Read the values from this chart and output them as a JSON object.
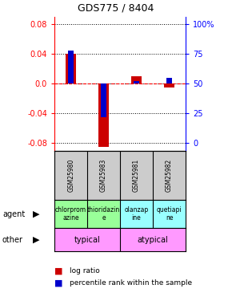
{
  "title": "GDS775 / 8404",
  "samples": [
    "GSM25980",
    "GSM25983",
    "GSM25981",
    "GSM25982"
  ],
  "log_ratio": [
    0.04,
    -0.085,
    0.01,
    -0.005
  ],
  "percentile_rank": [
    78,
    22,
    52,
    55
  ],
  "agent_labels_line1": [
    "chlorprom",
    "thioridazin",
    "olanzap",
    "quetiapi"
  ],
  "agent_labels_line2": [
    "azine",
    "e",
    "ine",
    "ne"
  ],
  "agent_color_1": "#99ff99",
  "agent_color_2": "#99ffff",
  "other_color_hex": "#ff99ff",
  "ylim": [
    -0.09,
    0.09
  ],
  "yticks_left": [
    -0.08,
    -0.04,
    0.0,
    0.04,
    0.08
  ],
  "yticks_right": [
    0,
    25,
    50,
    75,
    100
  ],
  "bar_color_red": "#cc0000",
  "bar_color_blue": "#0000cc",
  "sample_bg": "#cccccc"
}
